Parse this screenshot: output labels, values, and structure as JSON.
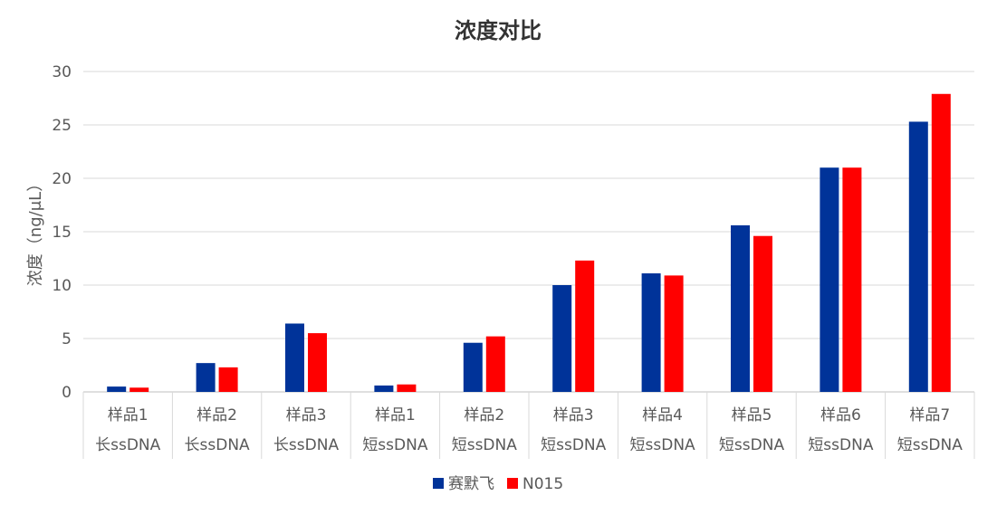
{
  "chart_data": {
    "type": "bar",
    "title": "浓度对比",
    "ylabel": "浓度（ng/μL）",
    "xlabel": "",
    "ylim": [
      0,
      30
    ],
    "yticks": [
      0,
      5,
      10,
      15,
      20,
      25,
      30
    ],
    "grid": true,
    "legend_position": "bottom",
    "categories": [
      [
        "样品1",
        "长ssDNA"
      ],
      [
        "样品2",
        "长ssDNA"
      ],
      [
        "样品3",
        "长ssDNA"
      ],
      [
        "样品1",
        "短ssDNA"
      ],
      [
        "样品2",
        "短ssDNA"
      ],
      [
        "样品3",
        "短ssDNA"
      ],
      [
        "样品4",
        "短ssDNA"
      ],
      [
        "样品5",
        "短ssDNA"
      ],
      [
        "样品6",
        "短ssDNA"
      ],
      [
        "样品7",
        "短ssDNA"
      ]
    ],
    "series": [
      {
        "name": "赛默飞",
        "color": "#003399",
        "values": [
          0.5,
          2.7,
          6.4,
          0.6,
          4.6,
          10.0,
          11.1,
          15.6,
          21.0,
          25.3
        ]
      },
      {
        "name": "N015",
        "color": "#ff0000",
        "values": [
          0.4,
          2.3,
          5.5,
          0.7,
          5.2,
          12.3,
          10.9,
          14.6,
          21.0,
          27.9
        ]
      }
    ]
  }
}
